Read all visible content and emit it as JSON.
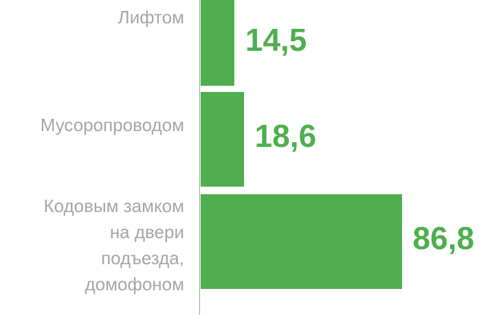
{
  "chart_data": {
    "type": "bar",
    "orientation": "horizontal",
    "categories": [
      "Лифтом",
      "Мусоропроводом",
      "Кодовым замком\nна двери\nподъезда,\nдомофоном"
    ],
    "values": [
      14.5,
      18.6,
      86.8
    ],
    "value_labels": [
      "14,5",
      "18,6",
      "86,8"
    ],
    "color": "#4fae4f"
  }
}
